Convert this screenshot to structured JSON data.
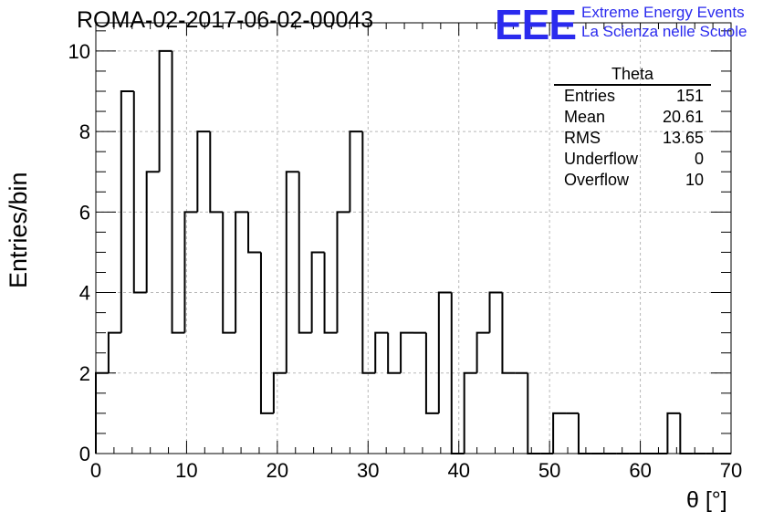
{
  "header": {
    "title": "ROMA-02-2017-06-02-00043",
    "logo_text": "EEE",
    "logo_line1": "Extreme Energy Events",
    "logo_line2": "La Scienza nelle Scuole"
  },
  "stats": {
    "name": "Theta",
    "rows": [
      {
        "label": "Entries",
        "value": "151"
      },
      {
        "label": "Mean",
        "value": "20.61"
      },
      {
        "label": "RMS",
        "value": "13.65"
      },
      {
        "label": "Underflow",
        "value": "0"
      },
      {
        "label": "Overflow",
        "value": "10"
      }
    ]
  },
  "colors": {
    "logo": "#2a2aee",
    "grid": "#b8b8b8",
    "line": "#000000"
  },
  "chart_data": {
    "type": "bar",
    "title": "ROMA-02-2017-06-02-00043",
    "xlabel": "θ [°]",
    "ylabel": "Entries/bin",
    "xlim": [
      0,
      70
    ],
    "ylim": [
      0,
      10.7
    ],
    "bin_width": 1.4,
    "x_ticks": [
      0,
      10,
      20,
      30,
      40,
      50,
      60,
      70
    ],
    "y_ticks": [
      0,
      2,
      4,
      6,
      8,
      10
    ],
    "grid": true,
    "values": [
      2,
      3,
      9,
      4,
      7,
      10,
      3,
      6,
      8,
      6,
      3,
      6,
      5,
      1,
      2,
      7,
      3,
      5,
      3,
      6,
      8,
      2,
      3,
      2,
      3,
      3,
      1,
      4,
      0,
      2,
      3,
      4,
      2,
      2,
      0,
      0,
      1,
      1,
      0,
      0,
      0,
      0,
      0,
      0,
      0,
      1,
      0,
      0,
      0,
      0
    ]
  }
}
